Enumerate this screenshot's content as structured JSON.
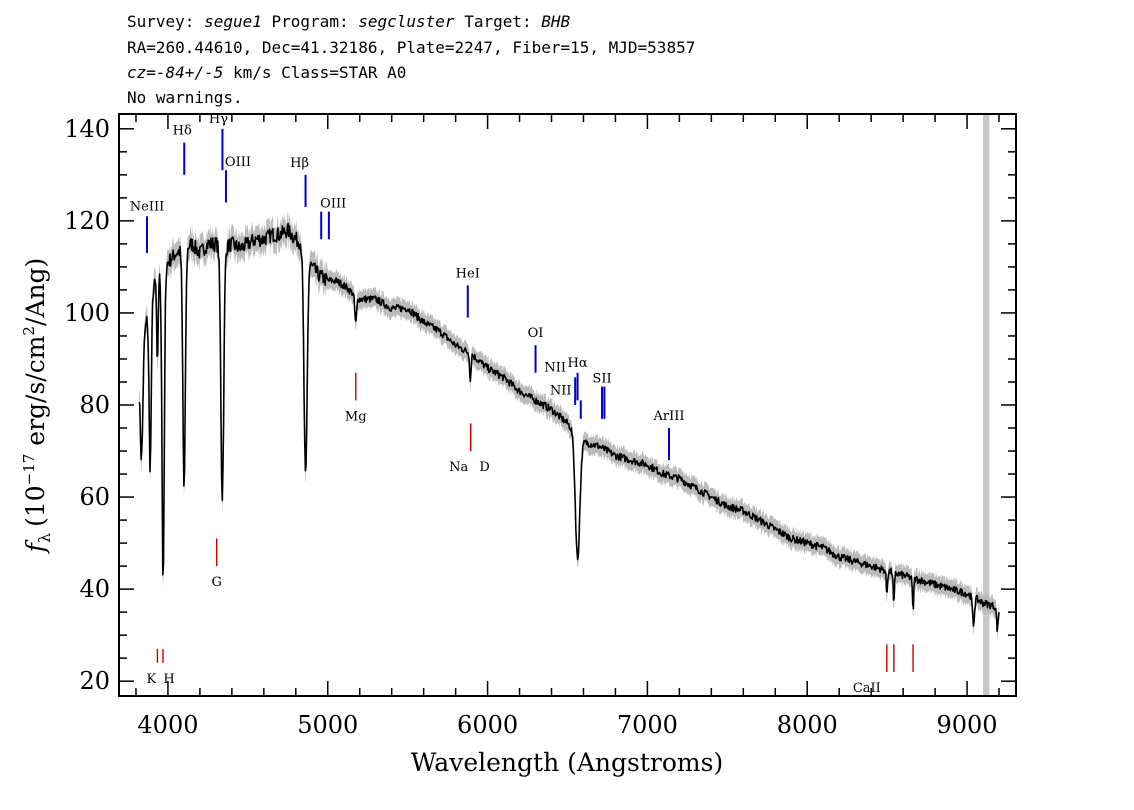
{
  "header": {
    "survey_label": "Survey:",
    "survey_value": "segue1",
    "program_label": "Program:",
    "program_value": "segcluster",
    "target_label": "Target:",
    "target_value": "BHB",
    "line2": "RA=260.44610, Dec=41.32186, Plate=2247, Fiber=15, MJD=53857",
    "cz_label": "cz=",
    "cz_value": "-84+/-5",
    "cz_units_class": " km/s Class=STAR A0",
    "line4": "No warnings."
  },
  "chart_data": {
    "type": "line",
    "title": "",
    "xlabel": "Wavelength (Angstroms)",
    "ylabel": "f_λ (10^-17 erg/s/cm^2/Ang)",
    "ylabel_parts": {
      "f": "f",
      "lambda": "λ",
      "open": "(10",
      "exp1": "−17",
      "mid": " erg/s/cm",
      "exp2": "2",
      "close": "/Ang)"
    },
    "xlim": [
      3700,
      9300
    ],
    "ylim": [
      17,
      143
    ],
    "xticks": [
      4000,
      5000,
      6000,
      7000,
      8000,
      9000
    ],
    "yticks": [
      20,
      40,
      60,
      80,
      100,
      120,
      140
    ],
    "masked_band": [
      9100,
      9140
    ],
    "colors": {
      "flux": "#000000",
      "error": "#bbbbbb",
      "mask": "#c8c8c8",
      "emission": "#0000cc",
      "absorption": "#cc0000"
    },
    "continuum": [
      [
        3820,
        86
      ],
      [
        3850,
        95
      ],
      [
        3900,
        105
      ],
      [
        3950,
        108
      ],
      [
        4000,
        111
      ],
      [
        4050,
        113
      ],
      [
        4100,
        114
      ],
      [
        4150,
        115
      ],
      [
        4200,
        113
      ],
      [
        4250,
        115
      ],
      [
        4300,
        115
      ],
      [
        4350,
        114
      ],
      [
        4400,
        115
      ],
      [
        4450,
        114
      ],
      [
        4500,
        115
      ],
      [
        4550,
        116
      ],
      [
        4600,
        116
      ],
      [
        4650,
        117
      ],
      [
        4700,
        117
      ],
      [
        4750,
        118
      ],
      [
        4800,
        116
      ],
      [
        4850,
        115
      ],
      [
        4900,
        110
      ],
      [
        4950,
        108
      ],
      [
        5000,
        107
      ],
      [
        5050,
        107
      ],
      [
        5100,
        106
      ],
      [
        5200,
        103
      ],
      [
        5300,
        103
      ],
      [
        5400,
        101
      ],
      [
        5500,
        101
      ],
      [
        5600,
        98
      ],
      [
        5700,
        96
      ],
      [
        5800,
        93
      ],
      [
        5900,
        91
      ],
      [
        6000,
        88
      ],
      [
        6100,
        86
      ],
      [
        6200,
        83
      ],
      [
        6300,
        81
      ],
      [
        6400,
        79
      ],
      [
        6500,
        76
      ],
      [
        6600,
        72
      ],
      [
        6700,
        71
      ],
      [
        6800,
        69
      ],
      [
        6900,
        68
      ],
      [
        7000,
        67
      ],
      [
        7100,
        65
      ],
      [
        7200,
        64
      ],
      [
        7300,
        62
      ],
      [
        7400,
        60
      ],
      [
        7500,
        58
      ],
      [
        7600,
        57
      ],
      [
        7700,
        55
      ],
      [
        7800,
        53
      ],
      [
        7900,
        51
      ],
      [
        8000,
        50
      ],
      [
        8100,
        49
      ],
      [
        8200,
        47
      ],
      [
        8300,
        46
      ],
      [
        8400,
        45
      ],
      [
        8500,
        44
      ],
      [
        8600,
        43
      ],
      [
        8700,
        42
      ],
      [
        8800,
        41
      ],
      [
        8900,
        40
      ],
      [
        9000,
        39
      ],
      [
        9100,
        37
      ],
      [
        9200,
        36
      ]
    ],
    "absorption_features": [
      [
        3835,
        8,
        22
      ],
      [
        3889,
        7,
        36
      ],
      [
        3934,
        4,
        20
      ],
      [
        3970,
        7,
        68
      ],
      [
        4101,
        8,
        52
      ],
      [
        4340,
        9,
        54
      ],
      [
        4861,
        10,
        50
      ],
      [
        5175,
        6,
        6
      ],
      [
        5892,
        4,
        6
      ],
      [
        6563,
        14,
        27
      ],
      [
        8498,
        4,
        5
      ],
      [
        8542,
        4,
        7
      ],
      [
        8662,
        4,
        7
      ],
      [
        9040,
        6,
        6
      ],
      [
        9190,
        5,
        5
      ]
    ],
    "spectral_lines": [
      {
        "label": "NeIII",
        "wavelength": 3869,
        "type": "emission",
        "y_top": 121,
        "y_bottom": 113
      },
      {
        "label": "Hδ",
        "wavelength": 4102,
        "type": "emission",
        "y_top": 137,
        "y_bottom": 130
      },
      {
        "label": "Hγ",
        "wavelength": 4341,
        "type": "emission",
        "y_top": 140,
        "y_bottom": 131
      },
      {
        "label": "OIII",
        "wavelength": 4363,
        "type": "emission",
        "y_top": 131,
        "y_bottom": 124
      },
      {
        "label": "Hβ",
        "wavelength": 4861,
        "type": "emission",
        "y_top": 130,
        "y_bottom": 123
      },
      {
        "label": "OIII",
        "wavelength": 4959,
        "type": "emission",
        "y_top": 122,
        "y_bottom": 116
      },
      {
        "label": "",
        "wavelength": 5007,
        "type": "emission",
        "y_top": 122,
        "y_bottom": 116
      },
      {
        "label": "HeI",
        "wavelength": 5876,
        "type": "emission",
        "y_top": 106,
        "y_bottom": 99
      },
      {
        "label": "OI",
        "wavelength": 6300,
        "type": "emission",
        "y_top": 93,
        "y_bottom": 87
      },
      {
        "label": "NII",
        "wavelength": 6548,
        "type": "emission",
        "y_top": 86,
        "y_bottom": 80
      },
      {
        "label": "Hα",
        "wavelength": 6563,
        "type": "emission",
        "y_top": 87,
        "y_bottom": 81
      },
      {
        "label": "NII",
        "wavelength": 6583,
        "type": "emission",
        "y_top": 81,
        "y_bottom": 77
      },
      {
        "label": "SII",
        "wavelength": 6716,
        "type": "emission",
        "y_top": 84,
        "y_bottom": 77
      },
      {
        "label": "",
        "wavelength": 6731,
        "type": "emission",
        "y_top": 84,
        "y_bottom": 77
      },
      {
        "label": "ArIII",
        "wavelength": 7135,
        "type": "emission",
        "y_top": 75,
        "y_bottom": 68
      },
      {
        "label": "K",
        "wavelength": 3934,
        "type": "absorption",
        "y_top": 27,
        "y_bottom": 24
      },
      {
        "label": "H",
        "wavelength": 3969,
        "type": "absorption",
        "y_top": 27,
        "y_bottom": 24
      },
      {
        "label": "G",
        "wavelength": 4305,
        "type": "absorption",
        "y_top": 51,
        "y_bottom": 45
      },
      {
        "label": "Mg",
        "wavelength": 5175,
        "type": "absorption",
        "y_top": 87,
        "y_bottom": 81
      },
      {
        "label": "Na",
        "wavelength": 5894,
        "type": "absorption",
        "y_top": 76,
        "y_bottom": 70
      },
      {
        "label": "D",
        "wavelength": 5894,
        "type": "absorption",
        "y_top": 76,
        "y_bottom": 70
      },
      {
        "label": "CaII",
        "wavelength": 8498,
        "type": "absorption",
        "y_top": 28,
        "y_bottom": 22
      },
      {
        "label": "",
        "wavelength": 8542,
        "type": "absorption",
        "y_top": 28,
        "y_bottom": 22
      },
      {
        "label": "",
        "wavelength": 8662,
        "type": "absorption",
        "y_top": 28,
        "y_bottom": 22
      }
    ]
  }
}
